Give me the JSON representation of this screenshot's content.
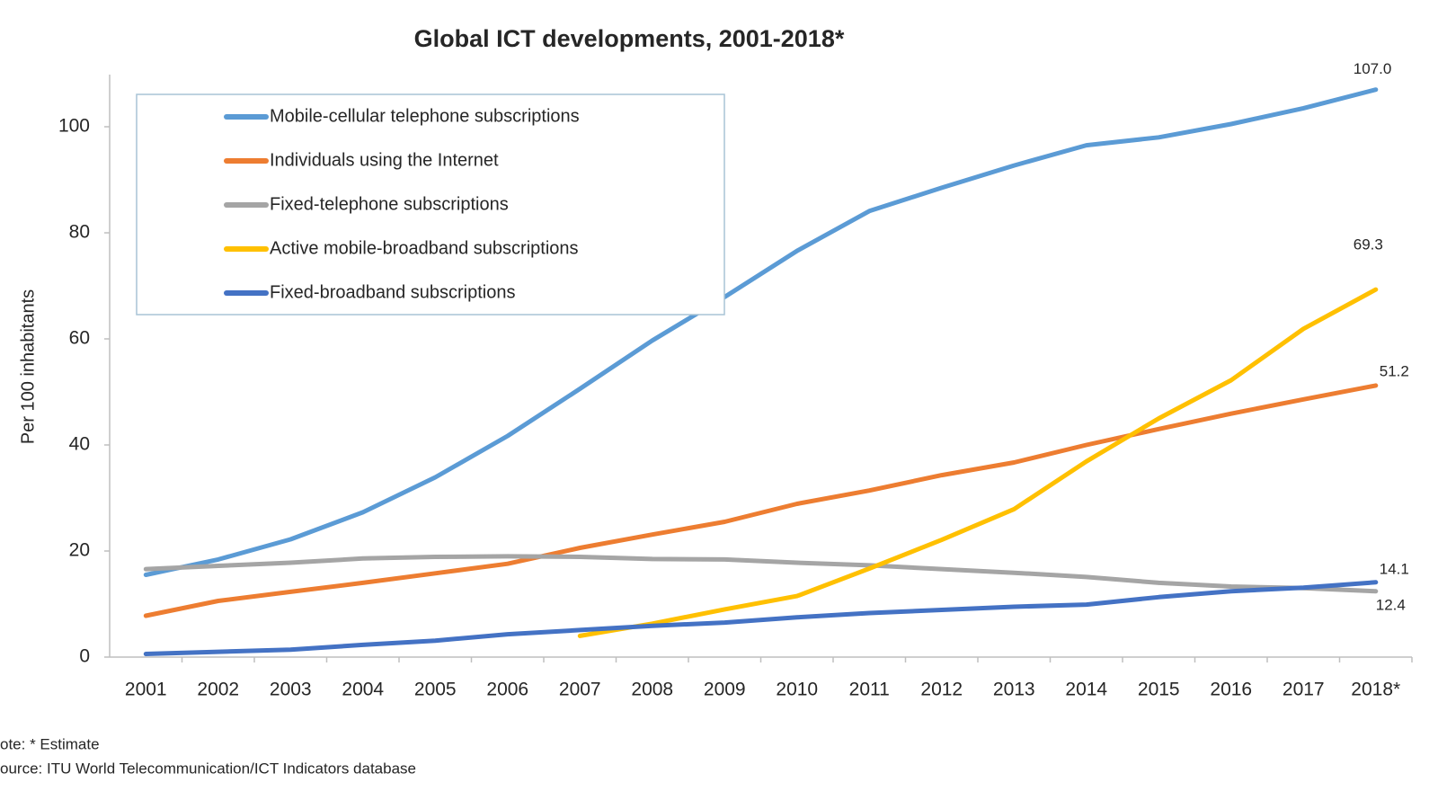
{
  "chart_data": {
    "type": "line",
    "title": "Global ICT developments, 2001-2018*",
    "y_label": "Per 100 inhabitants",
    "notes": [
      "ote: * Estimate",
      "ource:  ITU World Telecommunication/ICT Indicators database"
    ],
    "categories": [
      "2001",
      "2002",
      "2003",
      "2004",
      "2005",
      "2006",
      "2007",
      "2008",
      "2009",
      "2010",
      "2011",
      "2012",
      "2013",
      "2014",
      "2015",
      "2016",
      "2017",
      "2018*"
    ],
    "ylim": [
      0,
      110
    ],
    "yticks": [
      0,
      20,
      40,
      60,
      80,
      100
    ],
    "grid": false,
    "legend": "upper left",
    "series": [
      {
        "name": "Mobile-cellular telephone subscriptions",
        "color": "#5b9bd5",
        "values": [
          15.5,
          18.4,
          22.2,
          27.3,
          33.9,
          41.7,
          50.6,
          59.7,
          67.9,
          76.6,
          84.1,
          88.5,
          92.7,
          96.5,
          98.0,
          100.5,
          103.5,
          107.0
        ],
        "value_labels": [
          null,
          null,
          null,
          null,
          null,
          null,
          null,
          null,
          null,
          null,
          null,
          null,
          null,
          null,
          null,
          null,
          null,
          "107.0"
        ]
      },
      {
        "name": "Individuals using the Internet",
        "color": "#ed7d31",
        "values": [
          7.8,
          10.6,
          12.3,
          14.0,
          15.8,
          17.6,
          20.6,
          23.1,
          25.5,
          28.9,
          31.4,
          34.3,
          36.7,
          40.0,
          43.0,
          45.9,
          48.6,
          51.2
        ],
        "value_labels": [
          null,
          null,
          null,
          null,
          null,
          null,
          null,
          null,
          null,
          null,
          null,
          null,
          null,
          null,
          null,
          null,
          null,
          "51.2"
        ]
      },
      {
        "name": "Fixed-telephone subscriptions",
        "color": "#a5a5a5",
        "values": [
          16.6,
          17.2,
          17.8,
          18.6,
          18.9,
          19.0,
          18.9,
          18.5,
          18.4,
          17.8,
          17.3,
          16.6,
          15.9,
          15.1,
          14.0,
          13.3,
          13.0,
          12.4
        ],
        "value_labels": [
          null,
          null,
          null,
          null,
          null,
          null,
          null,
          null,
          null,
          null,
          null,
          null,
          null,
          null,
          null,
          null,
          null,
          "12.4"
        ]
      },
      {
        "name": "Active mobile-broadband subscriptions",
        "color": "#ffc000",
        "values": [
          null,
          null,
          null,
          null,
          null,
          null,
          4.0,
          6.3,
          9.0,
          11.5,
          16.7,
          22.1,
          27.9,
          36.9,
          45.0,
          52.2,
          61.9,
          69.3
        ],
        "value_labels": [
          null,
          null,
          null,
          null,
          null,
          null,
          null,
          null,
          null,
          null,
          null,
          null,
          null,
          null,
          null,
          null,
          null,
          "69.3"
        ]
      },
      {
        "name": "Fixed-broadband subscriptions",
        "color": "#4472c4",
        "values": [
          0.6,
          1.0,
          1.4,
          2.3,
          3.1,
          4.3,
          5.1,
          5.9,
          6.5,
          7.5,
          8.3,
          8.9,
          9.5,
          9.9,
          11.3,
          12.4,
          13.1,
          14.1
        ],
        "value_labels": [
          null,
          null,
          null,
          null,
          null,
          null,
          null,
          null,
          null,
          null,
          null,
          null,
          null,
          null,
          null,
          null,
          null,
          "14.1"
        ]
      }
    ]
  }
}
